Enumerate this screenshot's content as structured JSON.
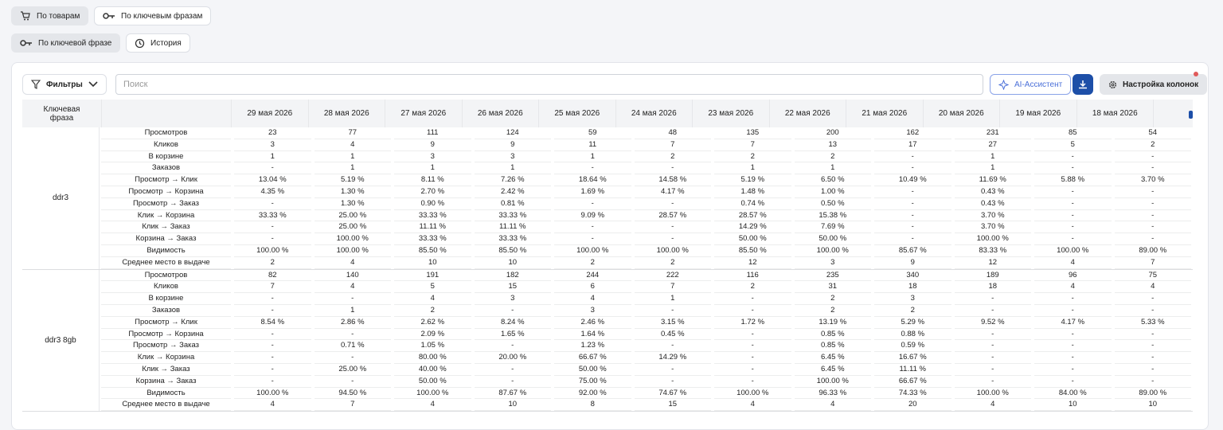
{
  "tabs": [
    "По товарам",
    "По ключевым фразам"
  ],
  "subtabs": [
    "По ключевой фразе",
    "История"
  ],
  "toolbar": {
    "filters": "Фильтры",
    "search_placeholder": "Поиск",
    "ai": "AI-Ассистент",
    "columns": "Настройка колонок"
  },
  "table": {
    "keyword_header": "Ключевая фраза",
    "dates": [
      "29 мая 2026",
      "28 мая 2026",
      "27 мая 2026",
      "26 мая 2026",
      "25 мая 2026",
      "24 мая 2026",
      "23 мая 2026",
      "22 мая 2026",
      "21 мая 2026",
      "20 мая 2026",
      "19 мая 2026",
      "18 мая 2026"
    ],
    "metrics": [
      "Просмотров",
      "Кликов",
      "В корзине",
      "Заказов",
      "Просмотр → Клик",
      "Просмотр → Корзина",
      "Просмотр → Заказ",
      "Клик → Корзина",
      "Клик → Заказ",
      "Корзина → Заказ",
      "Видимость",
      "Среднее место в выдаче"
    ],
    "groups": [
      {
        "keyword": "ddr3",
        "rows": [
          [
            "23",
            "77",
            "111",
            "124",
            "59",
            "48",
            "135",
            "200",
            "162",
            "231",
            "85",
            "54"
          ],
          [
            "3",
            "4",
            "9",
            "9",
            "11",
            "7",
            "7",
            "13",
            "17",
            "27",
            "5",
            "2"
          ],
          [
            "1",
            "1",
            "3",
            "3",
            "1",
            "2",
            "2",
            "2",
            "-",
            "1",
            "-",
            "-"
          ],
          [
            "-",
            "1",
            "1",
            "1",
            "-",
            "-",
            "1",
            "1",
            "-",
            "1",
            "-",
            "-"
          ],
          [
            "13.04 %",
            "5.19 %",
            "8.11 %",
            "7.26 %",
            "18.64 %",
            "14.58 %",
            "5.19 %",
            "6.50 %",
            "10.49 %",
            "11.69 %",
            "5.88 %",
            "3.70 %"
          ],
          [
            "4.35 %",
            "1.30 %",
            "2.70 %",
            "2.42 %",
            "1.69 %",
            "4.17 %",
            "1.48 %",
            "1.00 %",
            "-",
            "0.43 %",
            "-",
            "-"
          ],
          [
            "-",
            "1.30 %",
            "0.90 %",
            "0.81 %",
            "-",
            "-",
            "0.74 %",
            "0.50 %",
            "-",
            "0.43 %",
            "-",
            "-"
          ],
          [
            "33.33 %",
            "25.00 %",
            "33.33 %",
            "33.33 %",
            "9.09 %",
            "28.57 %",
            "28.57 %",
            "15.38 %",
            "-",
            "3.70 %",
            "-",
            "-"
          ],
          [
            "-",
            "25.00 %",
            "11.11 %",
            "11.11 %",
            "-",
            "-",
            "14.29 %",
            "7.69 %",
            "-",
            "3.70 %",
            "-",
            "-"
          ],
          [
            "-",
            "100.00 %",
            "33.33 %",
            "33.33 %",
            "-",
            "-",
            "50.00 %",
            "50.00 %",
            "-",
            "100.00 %",
            "-",
            "-"
          ],
          [
            "100.00 %",
            "100.00 %",
            "85.50 %",
            "85.50 %",
            "100.00 %",
            "100.00 %",
            "85.50 %",
            "100.00 %",
            "85.67 %",
            "83.33 %",
            "100.00 %",
            "89.00 %"
          ],
          [
            "2",
            "4",
            "10",
            "10",
            "2",
            "2",
            "12",
            "3",
            "9",
            "12",
            "4",
            "7"
          ]
        ]
      },
      {
        "keyword": "ddr3 8gb",
        "rows": [
          [
            "82",
            "140",
            "191",
            "182",
            "244",
            "222",
            "116",
            "235",
            "340",
            "189",
            "96",
            "75"
          ],
          [
            "7",
            "4",
            "5",
            "15",
            "6",
            "7",
            "2",
            "31",
            "18",
            "18",
            "4",
            "4"
          ],
          [
            "-",
            "-",
            "4",
            "3",
            "4",
            "1",
            "-",
            "2",
            "3",
            "-",
            "-",
            "-"
          ],
          [
            "-",
            "1",
            "2",
            "-",
            "3",
            "-",
            "-",
            "2",
            "2",
            "-",
            "-",
            "-"
          ],
          [
            "8.54 %",
            "2.86 %",
            "2.62 %",
            "8.24 %",
            "2.46 %",
            "3.15 %",
            "1.72 %",
            "13.19 %",
            "5.29 %",
            "9.52 %",
            "4.17 %",
            "5.33 %"
          ],
          [
            "-",
            "-",
            "2.09 %",
            "1.65 %",
            "1.64 %",
            "0.45 %",
            "-",
            "0.85 %",
            "0.88 %",
            "-",
            "-",
            "-"
          ],
          [
            "-",
            "0.71 %",
            "1.05 %",
            "-",
            "1.23 %",
            "-",
            "-",
            "0.85 %",
            "0.59 %",
            "-",
            "-",
            "-"
          ],
          [
            "-",
            "-",
            "80.00 %",
            "20.00 %",
            "66.67 %",
            "14.29 %",
            "-",
            "6.45 %",
            "16.67 %",
            "-",
            "-",
            "-"
          ],
          [
            "-",
            "25.00 %",
            "40.00 %",
            "-",
            "50.00 %",
            "-",
            "-",
            "6.45 %",
            "11.11 %",
            "-",
            "-",
            "-"
          ],
          [
            "-",
            "-",
            "50.00 %",
            "-",
            "75.00 %",
            "-",
            "-",
            "100.00 %",
            "66.67 %",
            "-",
            "-",
            "-"
          ],
          [
            "100.00 %",
            "94.50 %",
            "100.00 %",
            "87.67 %",
            "92.00 %",
            "74.67 %",
            "100.00 %",
            "96.33 %",
            "74.33 %",
            "100.00 %",
            "84.00 %",
            "89.00 %"
          ],
          [
            "4",
            "7",
            "4",
            "10",
            "8",
            "15",
            "4",
            "4",
            "20",
            "4",
            "10",
            "10"
          ]
        ]
      }
    ]
  }
}
